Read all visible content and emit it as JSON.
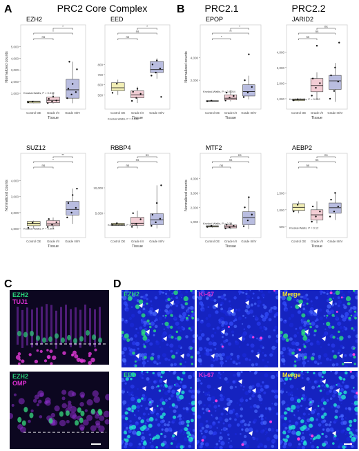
{
  "panel_letters": {
    "a": "A",
    "b": "B",
    "c": "C",
    "d": "D"
  },
  "headers": {
    "core": "PRC2 Core Complex",
    "prc21": "PRC2.1",
    "prc22": "PRC2.2"
  },
  "colors": {
    "control": "#f2efb6",
    "grade12": "#f2cdd4",
    "grade34": "#b9bde0",
    "dapi": "#1d2bd8",
    "green": "#29d17a",
    "magenta": "#e030d6"
  },
  "chart_data": [
    {
      "type": "box",
      "title": "EZH2",
      "categories": [
        "Control OE",
        "Grade I/II",
        "Grade III/IV"
      ],
      "xlabel": "Tissue",
      "ylabel": "Normalized counts",
      "yticks": [
        1000,
        2000,
        3000,
        4000,
        5000
      ],
      "ylim": [
        0,
        5200
      ],
      "stat": "Kruskal-Wallis, P = 0.019",
      "series": [
        {
          "q1": 180,
          "median": 260,
          "q3": 340,
          "lo": 150,
          "hi": 360,
          "points": [
            240,
            290
          ]
        },
        {
          "q1": 200,
          "median": 400,
          "q3": 680,
          "lo": 120,
          "hi": 1100,
          "points": [
            160,
            300,
            380,
            520,
            700
          ]
        },
        {
          "q1": 580,
          "median": 1300,
          "q3": 2200,
          "lo": 150,
          "hi": 3700,
          "points": [
            580,
            900,
            1100,
            1400,
            1800,
            3050,
            3700
          ]
        }
      ],
      "brackets": [
        {
          "a": 0,
          "b": 1,
          "label": "ns"
        },
        {
          "a": 0,
          "b": 2,
          "label": "*"
        },
        {
          "a": 1,
          "b": 2,
          "label": "*"
        }
      ]
    },
    {
      "type": "box",
      "title": "EED",
      "categories": [
        "Control OE",
        "Grade I/II",
        "Grade III/IV"
      ],
      "xlabel": "Tissue",
      "ylabel": "",
      "yticks": [
        500,
        600,
        700,
        800
      ],
      "ylim": [
        400,
        1000
      ],
      "stat": "Kruskal-Wallis, P = 0.048",
      "series": [
        {
          "q1": 540,
          "median": 570,
          "q3": 620,
          "lo": 500,
          "hi": 650,
          "points": [
            520,
            610
          ]
        },
        {
          "q1": 470,
          "median": 500,
          "q3": 540,
          "lo": 420,
          "hi": 580,
          "points": [
            440,
            470,
            510,
            530,
            560
          ]
        },
        {
          "q1": 720,
          "median": 750,
          "q3": 830,
          "lo": 660,
          "hi": 860,
          "points": [
            690,
            720,
            760,
            800,
            840,
            480
          ]
        }
      ],
      "brackets": [
        {
          "a": 0,
          "b": 1,
          "label": "ns"
        },
        {
          "a": 0,
          "b": 2,
          "label": "ns"
        },
        {
          "a": 1,
          "b": 2,
          "label": "*"
        }
      ]
    },
    {
      "type": "box",
      "title": "SUZ12",
      "categories": [
        "Control OE",
        "Grade I/II",
        "Grade III/IV"
      ],
      "xlabel": "Tissue",
      "ylabel": "Normalized counts",
      "yticks": [
        1000,
        2000,
        3000,
        4000
      ],
      "ylim": [
        700,
        4500
      ],
      "stat": "Kruskal-Wallis, P = 0.004",
      "series": [
        {
          "q1": 1180,
          "median": 1320,
          "q3": 1450,
          "lo": 1000,
          "hi": 1500,
          "points": [
            1050,
            1380
          ]
        },
        {
          "q1": 1180,
          "median": 1300,
          "q3": 1500,
          "lo": 1000,
          "hi": 1700,
          "points": [
            1100,
            1250,
            1400,
            1600
          ]
        },
        {
          "q1": 1850,
          "median": 2200,
          "q3": 2700,
          "lo": 1300,
          "hi": 3500,
          "points": [
            1700,
            2000,
            2300,
            2600,
            3100,
            3500
          ]
        }
      ],
      "brackets": [
        {
          "a": 0,
          "b": 1,
          "label": "ns"
        },
        {
          "a": 0,
          "b": 2,
          "label": "*"
        },
        {
          "a": 1,
          "b": 2,
          "label": "**"
        }
      ]
    },
    {
      "type": "box",
      "title": "RBBP4",
      "categories": [
        "Control OE",
        "Grade I/II",
        "Grade III/IV"
      ],
      "xlabel": "Tissue",
      "ylabel": "",
      "yticks": [
        5000,
        10000
      ],
      "ylim": [
        1000,
        13000
      ],
      "stat": "Kruskal-Wallis, P = 0.41",
      "series": [
        {
          "q1": 2600,
          "median": 2800,
          "q3": 3000,
          "lo": 2500,
          "hi": 3100,
          "points": [
            2700,
            3000
          ]
        },
        {
          "q1": 2600,
          "median": 3000,
          "q3": 4200,
          "lo": 2000,
          "hi": 5500,
          "points": [
            2300,
            2900,
            3800,
            5000
          ]
        },
        {
          "q1": 2700,
          "median": 3700,
          "q3": 4900,
          "lo": 2000,
          "hi": 10500,
          "points": [
            2500,
            3200,
            3900,
            4700,
            7000,
            10500
          ]
        }
      ],
      "brackets": [
        {
          "a": 0,
          "b": 1,
          "label": "ns"
        },
        {
          "a": 0,
          "b": 2,
          "label": "ns"
        },
        {
          "a": 1,
          "b": 2,
          "label": "ns"
        }
      ]
    },
    {
      "type": "box",
      "title": "EPOP",
      "categories": [
        "Control OE",
        "Grade I/II",
        "Grade III/IV"
      ],
      "xlabel": "Tissue",
      "ylabel": "Normalized counts",
      "yticks": [
        2000,
        4000
      ],
      "ylim": [
        -200,
        5200
      ],
      "stat": "Kruskal-Wallis, P = 0.0054",
      "series": [
        {
          "q1": 120,
          "median": 150,
          "q3": 190,
          "lo": 90,
          "hi": 210,
          "points": [
            130,
            180
          ]
        },
        {
          "q1": 250,
          "median": 400,
          "q3": 700,
          "lo": 120,
          "hi": 1100,
          "points": [
            200,
            450,
            600,
            900
          ]
        },
        {
          "q1": 600,
          "median": 1000,
          "q3": 1600,
          "lo": 300,
          "hi": 2400,
          "points": [
            500,
            900,
            1400,
            2000,
            4300
          ]
        }
      ],
      "brackets": [
        {
          "a": 0,
          "b": 1,
          "label": "*"
        },
        {
          "a": 0,
          "b": 2,
          "label": "**"
        },
        {
          "a": 1,
          "b": 2,
          "label": "*"
        }
      ]
    },
    {
      "type": "box",
      "title": "JARID2",
      "categories": [
        "Control OE",
        "Grade I/II",
        "Grade III/IV"
      ],
      "xlabel": "Tissue",
      "ylabel": "",
      "yticks": [
        1000,
        2000,
        3000,
        4000
      ],
      "ylim": [
        600,
        4500
      ],
      "stat": "Kruskal-Wallis, P = 0.052",
      "series": [
        {
          "q1": 880,
          "median": 930,
          "q3": 990,
          "lo": 850,
          "hi": 1000,
          "points": [
            900,
            970
          ]
        },
        {
          "q1": 1450,
          "median": 1850,
          "q3": 2300,
          "lo": 950,
          "hi": 2700,
          "points": [
            1200,
            1700,
            2000,
            2300,
            4400
          ]
        },
        {
          "q1": 1600,
          "median": 2150,
          "q3": 2500,
          "lo": 800,
          "hi": 3300,
          "points": [
            1000,
            1500,
            2100,
            2500,
            3000,
            4600
          ]
        }
      ],
      "brackets": [
        {
          "a": 0,
          "b": 1,
          "label": "ns"
        },
        {
          "a": 0,
          "b": 2,
          "label": "ns"
        },
        {
          "a": 1,
          "b": 2,
          "label": "ns"
        }
      ]
    },
    {
      "type": "box",
      "title": "MTF2",
      "categories": [
        "Control OE",
        "Grade I/II",
        "Grade III/IV"
      ],
      "xlabel": "Tissue",
      "ylabel": "Normalized counts",
      "yticks": [
        1000,
        2000,
        3000,
        4000
      ],
      "ylim": [
        200,
        4400
      ],
      "stat": "Kruskal-Wallis, P = 0.14",
      "series": [
        {
          "q1": 640,
          "median": 680,
          "q3": 730,
          "lo": 600,
          "hi": 760,
          "points": [
            650,
            720
          ]
        },
        {
          "q1": 580,
          "median": 680,
          "q3": 780,
          "lo": 500,
          "hi": 950,
          "points": [
            550,
            620,
            720,
            800
          ]
        },
        {
          "q1": 800,
          "median": 1300,
          "q3": 1700,
          "lo": 500,
          "hi": 2700,
          "points": [
            700,
            1100,
            1500,
            2000,
            2700
          ]
        }
      ],
      "brackets": [
        {
          "a": 0,
          "b": 1,
          "label": "ns"
        },
        {
          "a": 0,
          "b": 2,
          "label": "ns"
        },
        {
          "a": 1,
          "b": 2,
          "label": "ns"
        }
      ]
    },
    {
      "type": "box",
      "title": "AEBP2",
      "categories": [
        "Control OE",
        "Grade I/II",
        "Grade III/IV"
      ],
      "xlabel": "Tissue",
      "ylabel": "",
      "yticks": [
        500,
        1000,
        1500
      ],
      "ylim": [
        300,
        2100
      ],
      "stat": "Kruskal-Wallis, P = 0.12",
      "series": [
        {
          "q1": 980,
          "median": 1070,
          "q3": 1180,
          "lo": 900,
          "hi": 1250,
          "points": [
            950,
            1150
          ]
        },
        {
          "q1": 700,
          "median": 850,
          "q3": 1000,
          "lo": 600,
          "hi": 1250,
          "points": [
            650,
            800,
            950,
            1100
          ]
        },
        {
          "q1": 900,
          "median": 1060,
          "q3": 1200,
          "lo": 700,
          "hi": 1500,
          "points": [
            800,
            950,
            1100,
            1300,
            1500
          ]
        }
      ],
      "brackets": [
        {
          "a": 0,
          "b": 1,
          "label": "ns"
        },
        {
          "a": 0,
          "b": 2,
          "label": "ns"
        },
        {
          "a": 1,
          "b": 2,
          "label": "ns"
        }
      ]
    }
  ],
  "micrographs": {
    "c_top": {
      "label1": "EZH2",
      "label2": "TUJ1"
    },
    "c_bottom": {
      "label1": "EZH2",
      "label2": "OMP"
    },
    "d_row1": {
      "ch1": "EZH2",
      "ch2": "Ki-67",
      "ch3": "Merge"
    },
    "d_row2": {
      "ch1": "EED",
      "ch2": "Ki-67",
      "ch3": "Merge"
    }
  }
}
